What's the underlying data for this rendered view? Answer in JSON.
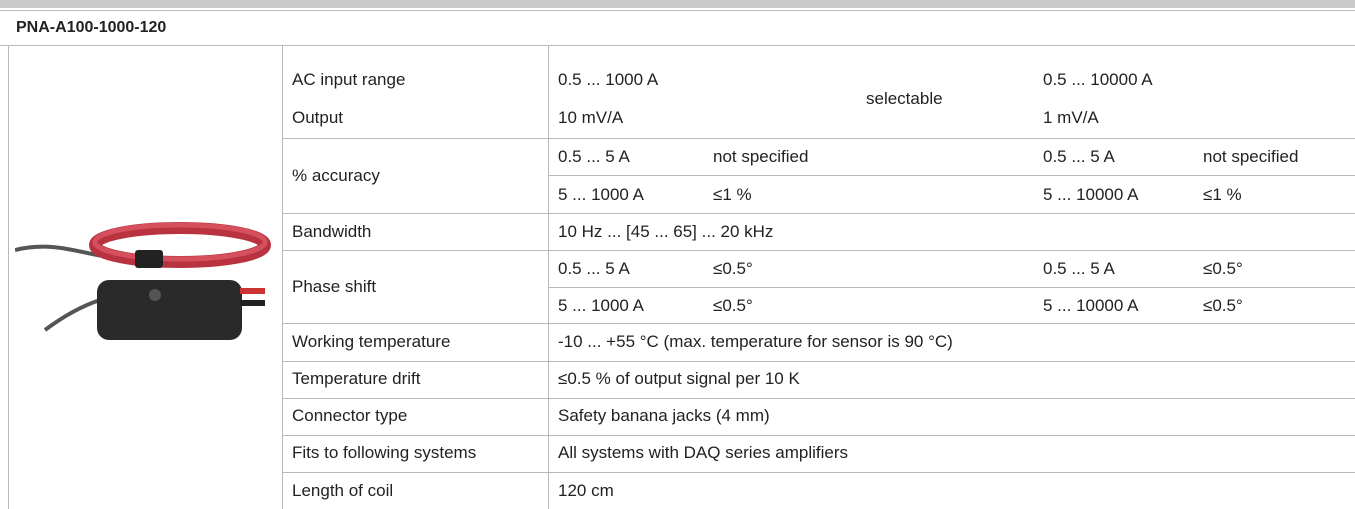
{
  "header": {
    "title": "PNA-A100-1000-120"
  },
  "specs": {
    "ac_input": {
      "label": "AC input range",
      "range_1": "0.5 ... 1000 A",
      "range_2": "0.5 ... 10000 A"
    },
    "output": {
      "label": "Output",
      "value_1": "10 mV/A",
      "value_2": "1 mV/A"
    },
    "selectable": "selectable",
    "accuracy": {
      "label": "% accuracy",
      "rows": [
        [
          "0.5 ... 5 A",
          "not specified",
          "0.5 ... 5 A",
          "not specified"
        ],
        [
          "5 ... 1000 A",
          "≤1 %",
          "5 ... 10000 A",
          "≤1 %"
        ]
      ]
    },
    "bandwidth": {
      "label": "Bandwidth",
      "value": "10 Hz ... [45 ... 65] ... 20 kHz"
    },
    "phase_shift": {
      "label": "Phase shift",
      "rows": [
        [
          "0.5 ... 5 A",
          "≤0.5°",
          "0.5 ... 5 A",
          "≤0.5°"
        ],
        [
          "5 ... 1000 A",
          "≤0.5°",
          "5 ... 10000 A",
          "≤0.5°"
        ]
      ]
    },
    "rows": [
      {
        "label": "Working temperature",
        "value": "-10 ... +55 °C (max. temperature for sensor is 90 °C)"
      },
      {
        "label": "Temperature drift",
        "value": "≤0.5 % of output signal per 10 K"
      },
      {
        "label": "Connector type",
        "value": "Safety banana jacks (4 mm)"
      },
      {
        "label": "Fits to following systems",
        "value": "All systems with DAQ series amplifiers"
      },
      {
        "label": "Length of coil",
        "value": "120 cm"
      }
    ]
  }
}
